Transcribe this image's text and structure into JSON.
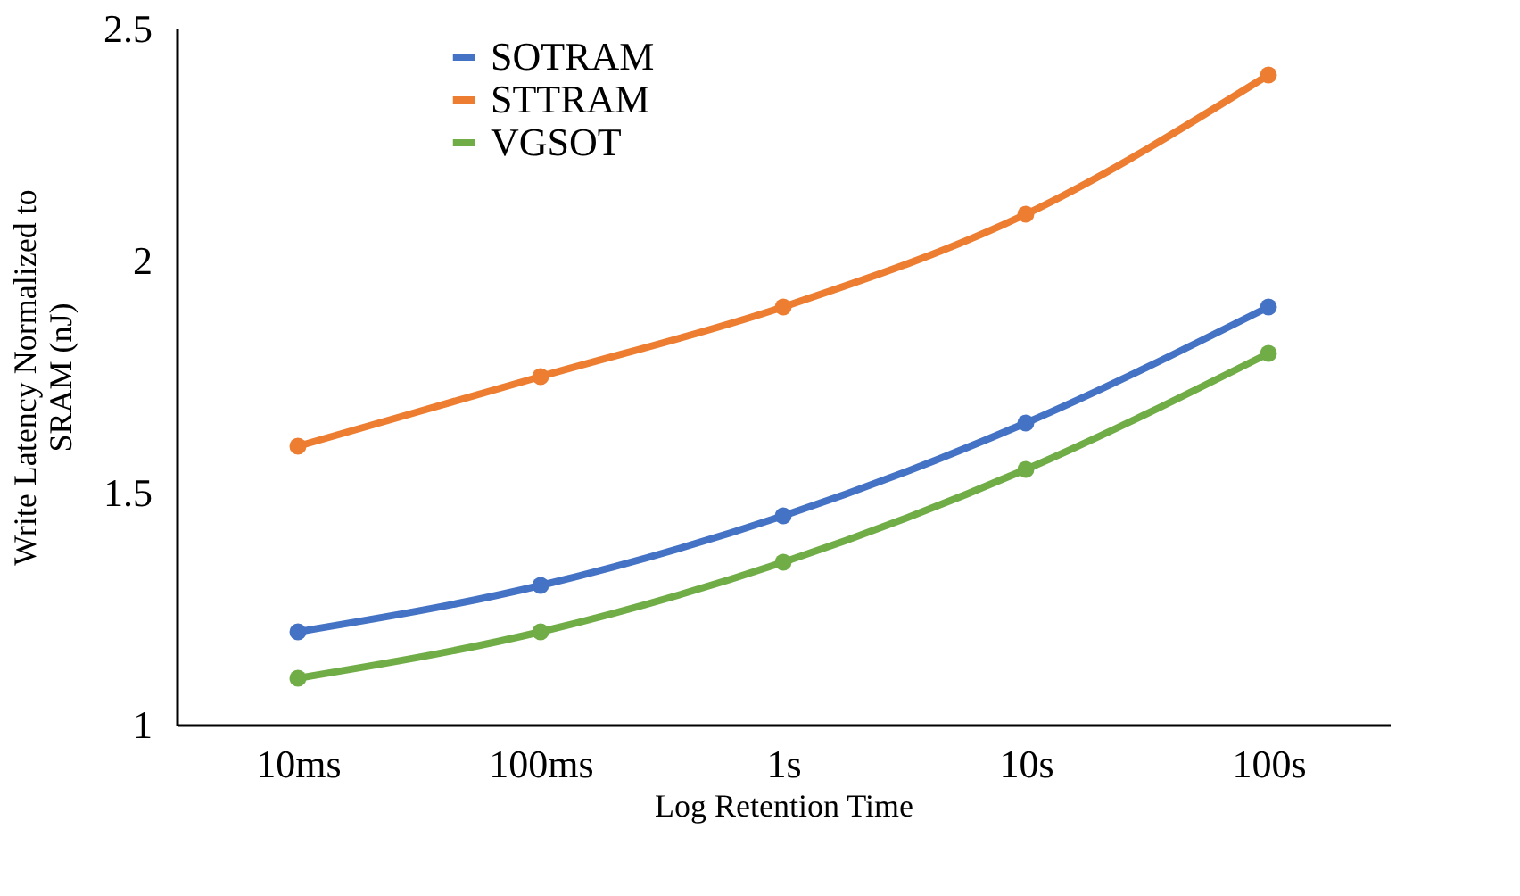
{
  "chart_data": {
    "type": "line",
    "xlabel": "Log Retention Time",
    "ylabel": "Write Latency Normalized to SRAM (nJ)",
    "categories": [
      "10ms",
      "100ms",
      "1s",
      "10s",
      "100s"
    ],
    "series": [
      {
        "name": "SOTRAM",
        "color": "#4472c4",
        "values": [
          1.2,
          1.3,
          1.45,
          1.65,
          1.9
        ]
      },
      {
        "name": "STTRAM",
        "color": "#ed7d31",
        "values": [
          1.6,
          1.75,
          1.9,
          2.1,
          2.4
        ]
      },
      {
        "name": "VGSOT",
        "color": "#70ad47",
        "values": [
          1.1,
          1.2,
          1.35,
          1.55,
          1.8
        ]
      }
    ],
    "ylim": [
      1,
      2.5
    ],
    "yticks": [
      1,
      1.5,
      2,
      2.5
    ],
    "grid": false,
    "legend": "top left",
    "marker": "circle",
    "line_style": "solid"
  }
}
